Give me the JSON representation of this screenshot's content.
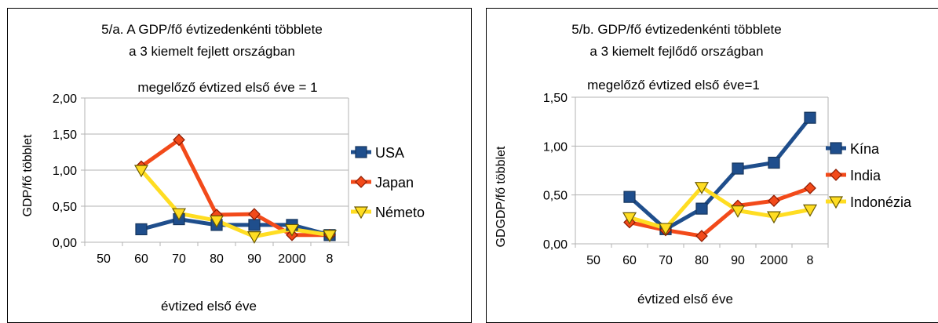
{
  "chart_data": [
    {
      "type": "line",
      "title": "5/a. A GDP/fő évtizedenkénti többlete",
      "subtitle": "a 3 kiemelt fejlett országban",
      "note": "megelőző évtized első éve = 1",
      "xlabel": "évtized első éve",
      "ylabel": "GDP/fő többlet",
      "categories": [
        "50",
        "60",
        "70",
        "80",
        "90",
        "2000",
        "8"
      ],
      "ylim": [
        0,
        2
      ],
      "yticks": [
        "0,00",
        "0,50",
        "1,00",
        "1,50",
        "2,00"
      ],
      "grid": true,
      "legend_position": "right",
      "series": [
        {
          "name": "USA",
          "color": "#1f4e8c",
          "marker": "square",
          "values": [
            null,
            0.18,
            0.32,
            0.24,
            0.24,
            0.24,
            0.1
          ]
        },
        {
          "name": "Japan",
          "color": "#f24a1a",
          "marker": "diamond",
          "values": [
            null,
            1.05,
            1.42,
            0.38,
            0.39,
            0.1,
            0.1
          ]
        },
        {
          "name": "Németo",
          "color": "#ffdd22",
          "marker": "triangle-down",
          "values": [
            null,
            1.0,
            0.4,
            0.3,
            0.08,
            0.18,
            0.1
          ]
        }
      ]
    },
    {
      "type": "line",
      "title": "5/b. GDP/fő évtizedenkénti többlete",
      "subtitle": "a 3 kiemelt fejlődő országban",
      "note": "megelőző évtized első éve=1",
      "xlabel": "évtized első éve",
      "ylabel": "GDGDP/fő többlet",
      "categories": [
        "50",
        "60",
        "70",
        "80",
        "90",
        "2000",
        "8"
      ],
      "ylim": [
        0,
        1.5
      ],
      "yticks": [
        "0,00",
        "0,50",
        "1,00",
        "1,50"
      ],
      "grid": true,
      "legend_position": "right",
      "series": [
        {
          "name": "Kína",
          "color": "#1f4e8c",
          "marker": "square",
          "values": [
            null,
            0.48,
            0.15,
            0.36,
            0.77,
            0.83,
            1.29
          ]
        },
        {
          "name": "India",
          "color": "#f24a1a",
          "marker": "diamond",
          "values": [
            null,
            0.22,
            0.14,
            0.08,
            0.39,
            0.44,
            0.57
          ]
        },
        {
          "name": "Indonézia",
          "color": "#ffdd22",
          "marker": "triangle-down",
          "values": [
            null,
            0.27,
            0.16,
            0.58,
            0.34,
            0.28,
            0.35
          ]
        }
      ]
    }
  ]
}
